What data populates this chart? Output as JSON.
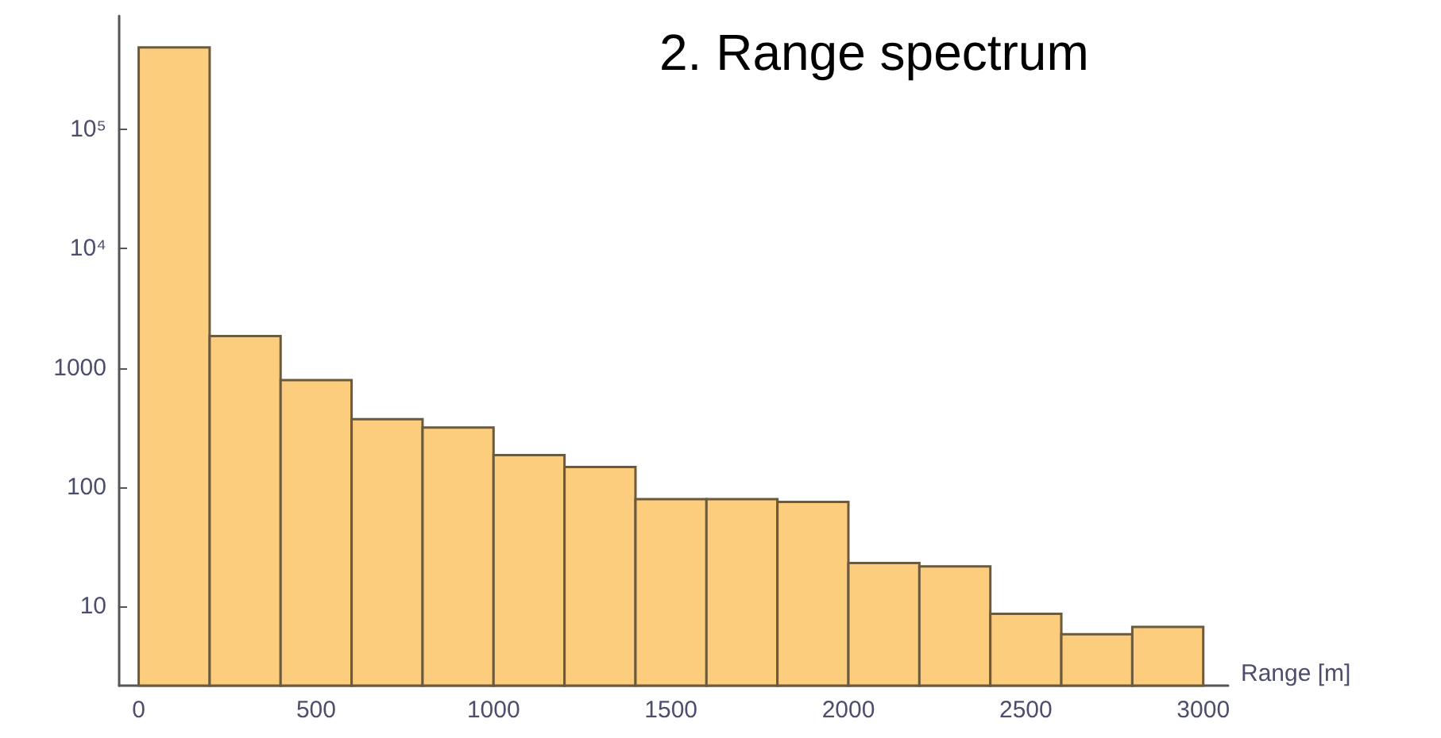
{
  "chart_data": {
    "type": "histogram",
    "title": "2. Range spectrum",
    "xlabel": "Range [m]",
    "bins": [
      0,
      200,
      400,
      600,
      800,
      1000,
      1200,
      1400,
      1600,
      1800,
      2000,
      2200,
      2400,
      2600,
      2800,
      3000
    ],
    "values": [
      490000,
      1850,
      790,
      370,
      315,
      185,
      147,
      79,
      79,
      75,
      23,
      21.5,
      8.6,
      5.8,
      6.7
    ],
    "color": "#fdcd7e",
    "log": "y",
    "grid": false,
    "xlim": [
      -55,
      3070
    ],
    "xticks": [
      0,
      500,
      1000,
      1500,
      2000,
      2500,
      3000
    ],
    "ylim": [
      2.15,
      900000
    ],
    "yticks": [
      10,
      100,
      1000,
      {
        "value": 10000,
        "label": "10⁴"
      },
      {
        "value": 100000,
        "label": "10⁵"
      }
    ]
  }
}
